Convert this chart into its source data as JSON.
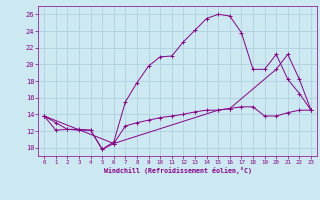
{
  "xlabel": "Windchill (Refroidissement éolien,°C)",
  "bg_color": "#cce8f0",
  "grid_color": "#aaccdd",
  "line_color": "#880088",
  "xmin": -0.5,
  "xmax": 23.5,
  "ymin": 9.0,
  "ymax": 27.0,
  "yticks": [
    10,
    12,
    14,
    16,
    18,
    20,
    22,
    24,
    26
  ],
  "xticks": [
    0,
    1,
    2,
    3,
    4,
    5,
    6,
    7,
    8,
    9,
    10,
    11,
    12,
    13,
    14,
    15,
    16,
    17,
    18,
    19,
    20,
    21,
    22,
    23
  ],
  "series1_x": [
    0,
    1,
    2,
    3,
    4,
    5,
    6,
    7,
    8,
    9,
    10,
    11,
    12,
    13,
    14,
    15,
    16,
    17,
    18,
    19,
    20,
    21,
    22,
    23
  ],
  "series1_y": [
    13.8,
    13.0,
    12.2,
    12.2,
    12.1,
    9.8,
    10.7,
    15.5,
    17.8,
    19.8,
    20.9,
    21.0,
    22.7,
    24.1,
    25.5,
    26.0,
    25.8,
    23.8,
    19.4,
    19.4,
    21.2,
    18.2,
    16.5,
    14.5
  ],
  "series2_x": [
    0,
    1,
    2,
    3,
    4,
    5,
    6,
    7,
    8,
    9,
    10,
    11,
    12,
    13,
    14,
    15,
    16,
    17,
    18,
    19,
    20,
    21,
    22,
    23
  ],
  "series2_y": [
    13.8,
    12.1,
    12.2,
    12.1,
    12.1,
    9.8,
    10.5,
    12.6,
    13.0,
    13.3,
    13.6,
    13.8,
    14.0,
    14.3,
    14.5,
    14.5,
    14.7,
    14.9,
    14.9,
    13.8,
    13.8,
    14.2,
    14.5,
    14.5
  ],
  "series3_x": [
    0,
    6,
    15,
    16,
    20,
    21,
    22,
    23
  ],
  "series3_y": [
    13.8,
    10.5,
    14.5,
    14.7,
    19.4,
    21.2,
    18.2,
    14.5
  ],
  "marker": "+"
}
